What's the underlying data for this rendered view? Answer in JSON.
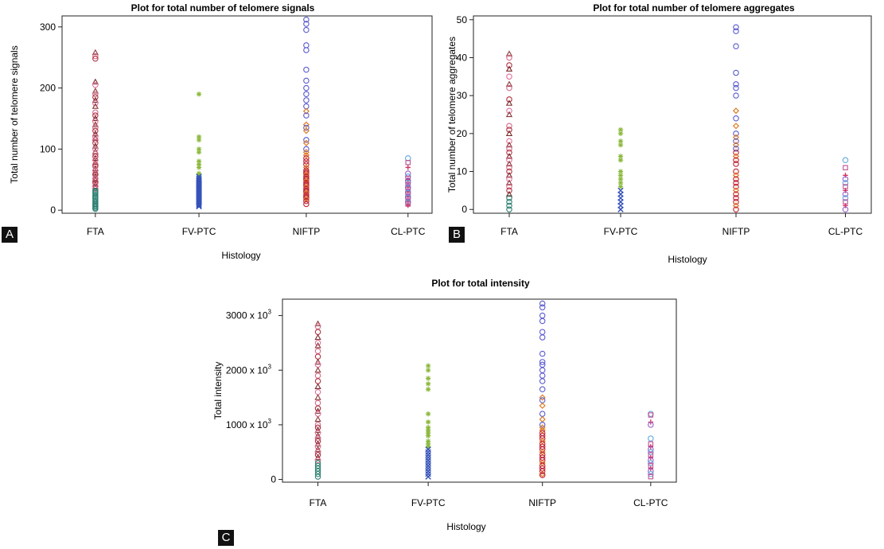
{
  "chart_data": [
    {
      "panel": "A",
      "type": "scatter",
      "title": "Plot for total number of telomere signals",
      "xlabel": "Histology",
      "ylabel": "Total number of telomere signals",
      "categories": [
        "FTA",
        "FV-PTC",
        "NIFTP",
        "CL-PTC"
      ],
      "yticks": [
        "0",
        "100",
        "200",
        "300"
      ],
      "ytick_values": [
        0,
        100,
        200,
        300
      ],
      "ylim": [
        -5,
        318
      ],
      "grid": false,
      "series": [
        {
          "category": "FTA",
          "values": [
            258,
            252,
            248,
            210,
            205,
            195,
            190,
            185,
            180,
            175,
            170,
            160,
            155,
            150,
            145,
            140,
            135,
            130,
            125,
            120,
            118,
            115,
            110,
            105,
            100,
            96,
            92,
            88,
            85,
            82,
            78,
            75,
            72,
            68,
            65,
            62,
            60,
            58,
            55,
            52,
            50,
            48,
            45,
            42,
            40,
            38,
            35,
            32,
            30,
            28,
            25,
            22,
            20,
            18,
            15,
            12,
            10,
            8,
            6,
            4,
            2
          ]
        },
        {
          "category": "FV-PTC",
          "values": [
            190,
            120,
            115,
            100,
            95,
            80,
            75,
            70,
            60,
            58,
            55,
            52,
            50,
            48,
            46,
            44,
            42,
            40,
            38,
            36,
            34,
            32,
            30,
            28,
            26,
            24,
            22,
            20,
            18,
            16,
            14,
            12,
            10,
            8,
            6
          ]
        },
        {
          "category": "NIFTP",
          "values": [
            312,
            305,
            295,
            270,
            262,
            230,
            212,
            200,
            190,
            180,
            170,
            162,
            155,
            140,
            135,
            130,
            115,
            110,
            100,
            95,
            90,
            85,
            80,
            75,
            70,
            65,
            62,
            60,
            58,
            55,
            52,
            50,
            48,
            45,
            42,
            40,
            38,
            35,
            32,
            30,
            28,
            25,
            22,
            20,
            18,
            15,
            10
          ]
        },
        {
          "category": "CL-PTC",
          "values": [
            85,
            78,
            70,
            60,
            55,
            52,
            50,
            48,
            45,
            42,
            40,
            38,
            36,
            34,
            32,
            30,
            28,
            26,
            24,
            22,
            20,
            18,
            16,
            14,
            12,
            10,
            8
          ]
        }
      ]
    },
    {
      "panel": "B",
      "type": "scatter",
      "title": "Plot for total number of telomere aggregates",
      "xlabel": "Histology",
      "ylabel": "Total number of telomere aggregates",
      "categories": [
        "FTA",
        "FV-PTC",
        "NIFTP",
        "CL-PTC"
      ],
      "yticks": [
        "0",
        "10",
        "20",
        "30",
        "40",
        "50"
      ],
      "ytick_values": [
        0,
        10,
        20,
        30,
        40,
        50
      ],
      "ylim": [
        -1,
        51
      ],
      "grid": false,
      "series": [
        {
          "category": "FTA",
          "values": [
            41,
            40,
            38,
            37,
            35,
            33,
            32,
            29,
            28,
            26,
            25,
            22,
            21,
            20,
            18,
            17,
            16,
            15,
            14,
            13,
            12,
            11,
            10,
            9,
            8,
            7,
            6,
            5,
            4,
            3,
            2,
            1,
            0
          ]
        },
        {
          "category": "FV-PTC",
          "values": [
            21,
            20,
            18,
            17,
            14,
            13,
            10,
            9,
            8,
            7,
            6,
            5,
            4,
            3,
            2,
            1,
            0
          ]
        },
        {
          "category": "NIFTP",
          "values": [
            48,
            47,
            43,
            36,
            33,
            32,
            30,
            26,
            24,
            22,
            20,
            19,
            18,
            17,
            16,
            15,
            14,
            13,
            12,
            10,
            9,
            8,
            7,
            6,
            5,
            4,
            3,
            2,
            1,
            0
          ]
        },
        {
          "category": "CL-PTC",
          "values": [
            13,
            11,
            9,
            8,
            7,
            6,
            5,
            4,
            3,
            2,
            1,
            0
          ]
        }
      ]
    },
    {
      "panel": "C",
      "type": "scatter",
      "title": "Plot for total intensity",
      "xlabel": "Histology",
      "ylabel": "Total intensity",
      "categories": [
        "FTA",
        "FV-PTC",
        "NIFTP",
        "CL-PTC"
      ],
      "yticks": [
        "0",
        "1000 x 10",
        "2000 x 10",
        "3000 x 10"
      ],
      "ytick_exp": "3",
      "ytick_values": [
        0,
        1000,
        2000,
        3000
      ],
      "ylim": [
        -50,
        3300
      ],
      "grid": false,
      "series": [
        {
          "category": "FTA",
          "values": [
            2850,
            2800,
            2700,
            2600,
            2500,
            2450,
            2350,
            2250,
            2150,
            2100,
            2000,
            1900,
            1800,
            1700,
            1600,
            1500,
            1400,
            1300,
            1250,
            1200,
            1100,
            1000,
            950,
            900,
            850,
            800,
            750,
            700,
            650,
            600,
            550,
            500,
            450,
            400,
            350,
            300,
            250,
            200,
            150,
            100,
            50
          ]
        },
        {
          "category": "FV-PTC",
          "values": [
            2080,
            2000,
            1850,
            1750,
            1650,
            1200,
            1050,
            950,
            900,
            850,
            800,
            700,
            650,
            600,
            550,
            500,
            450,
            400,
            350,
            300,
            250,
            200,
            150,
            100,
            50
          ]
        },
        {
          "category": "NIFTP",
          "values": [
            3220,
            3150,
            3000,
            2900,
            2700,
            2600,
            2300,
            2150,
            2100,
            2000,
            1900,
            1800,
            1650,
            1500,
            1450,
            1350,
            1200,
            1100,
            1000,
            950,
            900,
            850,
            800,
            750,
            700,
            650,
            600,
            550,
            500,
            450,
            400,
            350,
            300,
            250,
            200,
            150,
            100,
            80
          ]
        },
        {
          "category": "CL-PTC",
          "values": [
            1200,
            1180,
            1050,
            1000,
            750,
            650,
            600,
            550,
            500,
            450,
            400,
            350,
            300,
            250,
            200,
            150,
            100,
            50
          ]
        }
      ]
    }
  ],
  "panel_tags": [
    "A",
    "B",
    "C"
  ]
}
